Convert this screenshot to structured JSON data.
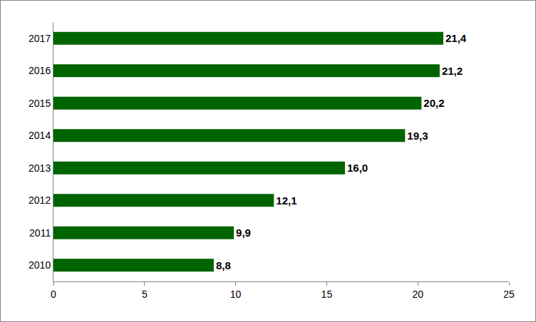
{
  "chart_data": {
    "type": "bar",
    "orientation": "horizontal",
    "categories": [
      "2010",
      "2011",
      "2012",
      "2013",
      "2014",
      "2015",
      "2016",
      "2017"
    ],
    "values": [
      8.8,
      9.9,
      12.1,
      16.0,
      19.3,
      20.2,
      21.2,
      21.4
    ],
    "value_labels": [
      "8,8",
      "9,9",
      "12,1",
      "16,0",
      "19,3",
      "20,2",
      "21,2",
      "21,4"
    ],
    "color": "#006400",
    "xlim": [
      0,
      25
    ],
    "xticks": [
      0,
      5,
      10,
      15,
      20,
      25
    ],
    "grid": false,
    "data_labels": true
  }
}
